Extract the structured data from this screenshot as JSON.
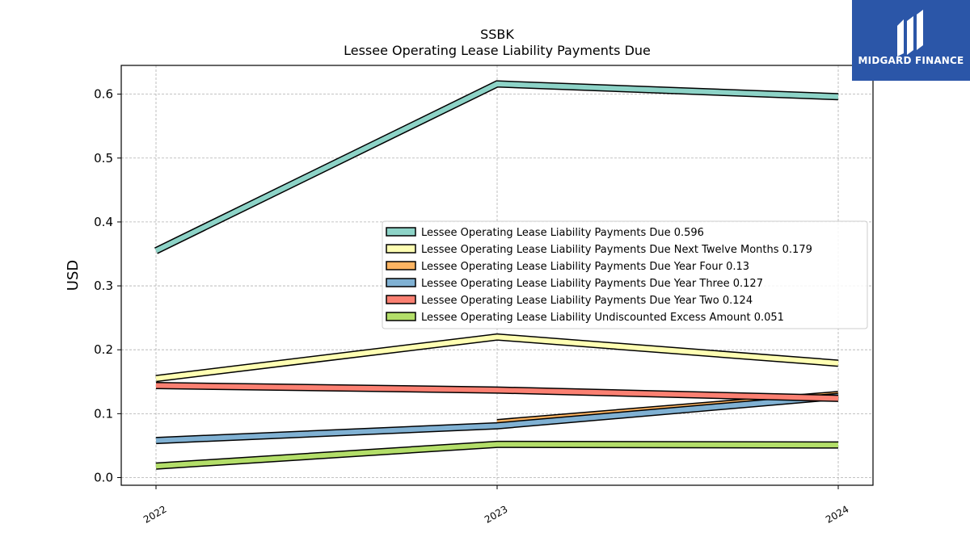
{
  "brand": {
    "name": "MIDGARD FINANCE",
    "icon": "midgard-logo-icon",
    "color": "#2b56a8"
  },
  "chart_data": {
    "type": "line",
    "title": "SSBK",
    "subtitle": "Lessee Operating Lease Liability Payments Due",
    "xlabel": "",
    "ylabel": "USD",
    "x": [
      "2022",
      "2023",
      "2024"
    ],
    "ylim": [
      -0.012,
      0.645
    ],
    "yticks": [
      "0.0",
      "0.1",
      "0.2",
      "0.3",
      "0.4",
      "0.5",
      "0.6"
    ],
    "grid": true,
    "legend_position": "center-right",
    "series": [
      {
        "name": "Lessee Operating Lease Liability Payments Due",
        "label": "Lessee Operating Lease Liability Payments Due  0.596",
        "color": "#8dd3c7",
        "x": [
          "2022",
          "2023",
          "2024"
        ],
        "values": [
          0.355,
          0.616,
          0.596
        ]
      },
      {
        "name": "Lessee Operating Lease Liability Payments Due Next Twelve Months",
        "label": "Lessee Operating Lease Liability Payments Due Next Twelve Months  0.179",
        "color": "#ffffb3",
        "x": [
          "2022",
          "2023",
          "2024"
        ],
        "values": [
          0.155,
          0.22,
          0.179
        ]
      },
      {
        "name": "Lessee Operating Lease Liability Payments Due Year Four",
        "label": "Lessee Operating Lease Liability Payments Due Year Four  0.13",
        "color": "#fdb462",
        "x": [
          "2023",
          "2024"
        ],
        "values": [
          0.086,
          0.13
        ]
      },
      {
        "name": "Lessee Operating Lease Liability Payments Due Year Three",
        "label": "Lessee Operating Lease Liability Payments Due Year Three  0.127",
        "color": "#80b1d3",
        "x": [
          "2022",
          "2023",
          "2024"
        ],
        "values": [
          0.058,
          0.081,
          0.127
        ]
      },
      {
        "name": "Lessee Operating Lease Liability Payments Due Year Two",
        "label": "Lessee Operating Lease Liability Payments Due Year Two  0.124",
        "color": "#fb8072",
        "x": [
          "2022",
          "2023",
          "2024"
        ],
        "values": [
          0.144,
          0.137,
          0.124
        ]
      },
      {
        "name": "Lessee Operating Lease Liability Undiscounted Excess Amount",
        "label": "Lessee Operating Lease Liability Undiscounted Excess Amount  0.051",
        "color": "#b3de69",
        "x": [
          "2022",
          "2023",
          "2024"
        ],
        "values": [
          0.018,
          0.052,
          0.051
        ]
      }
    ]
  }
}
